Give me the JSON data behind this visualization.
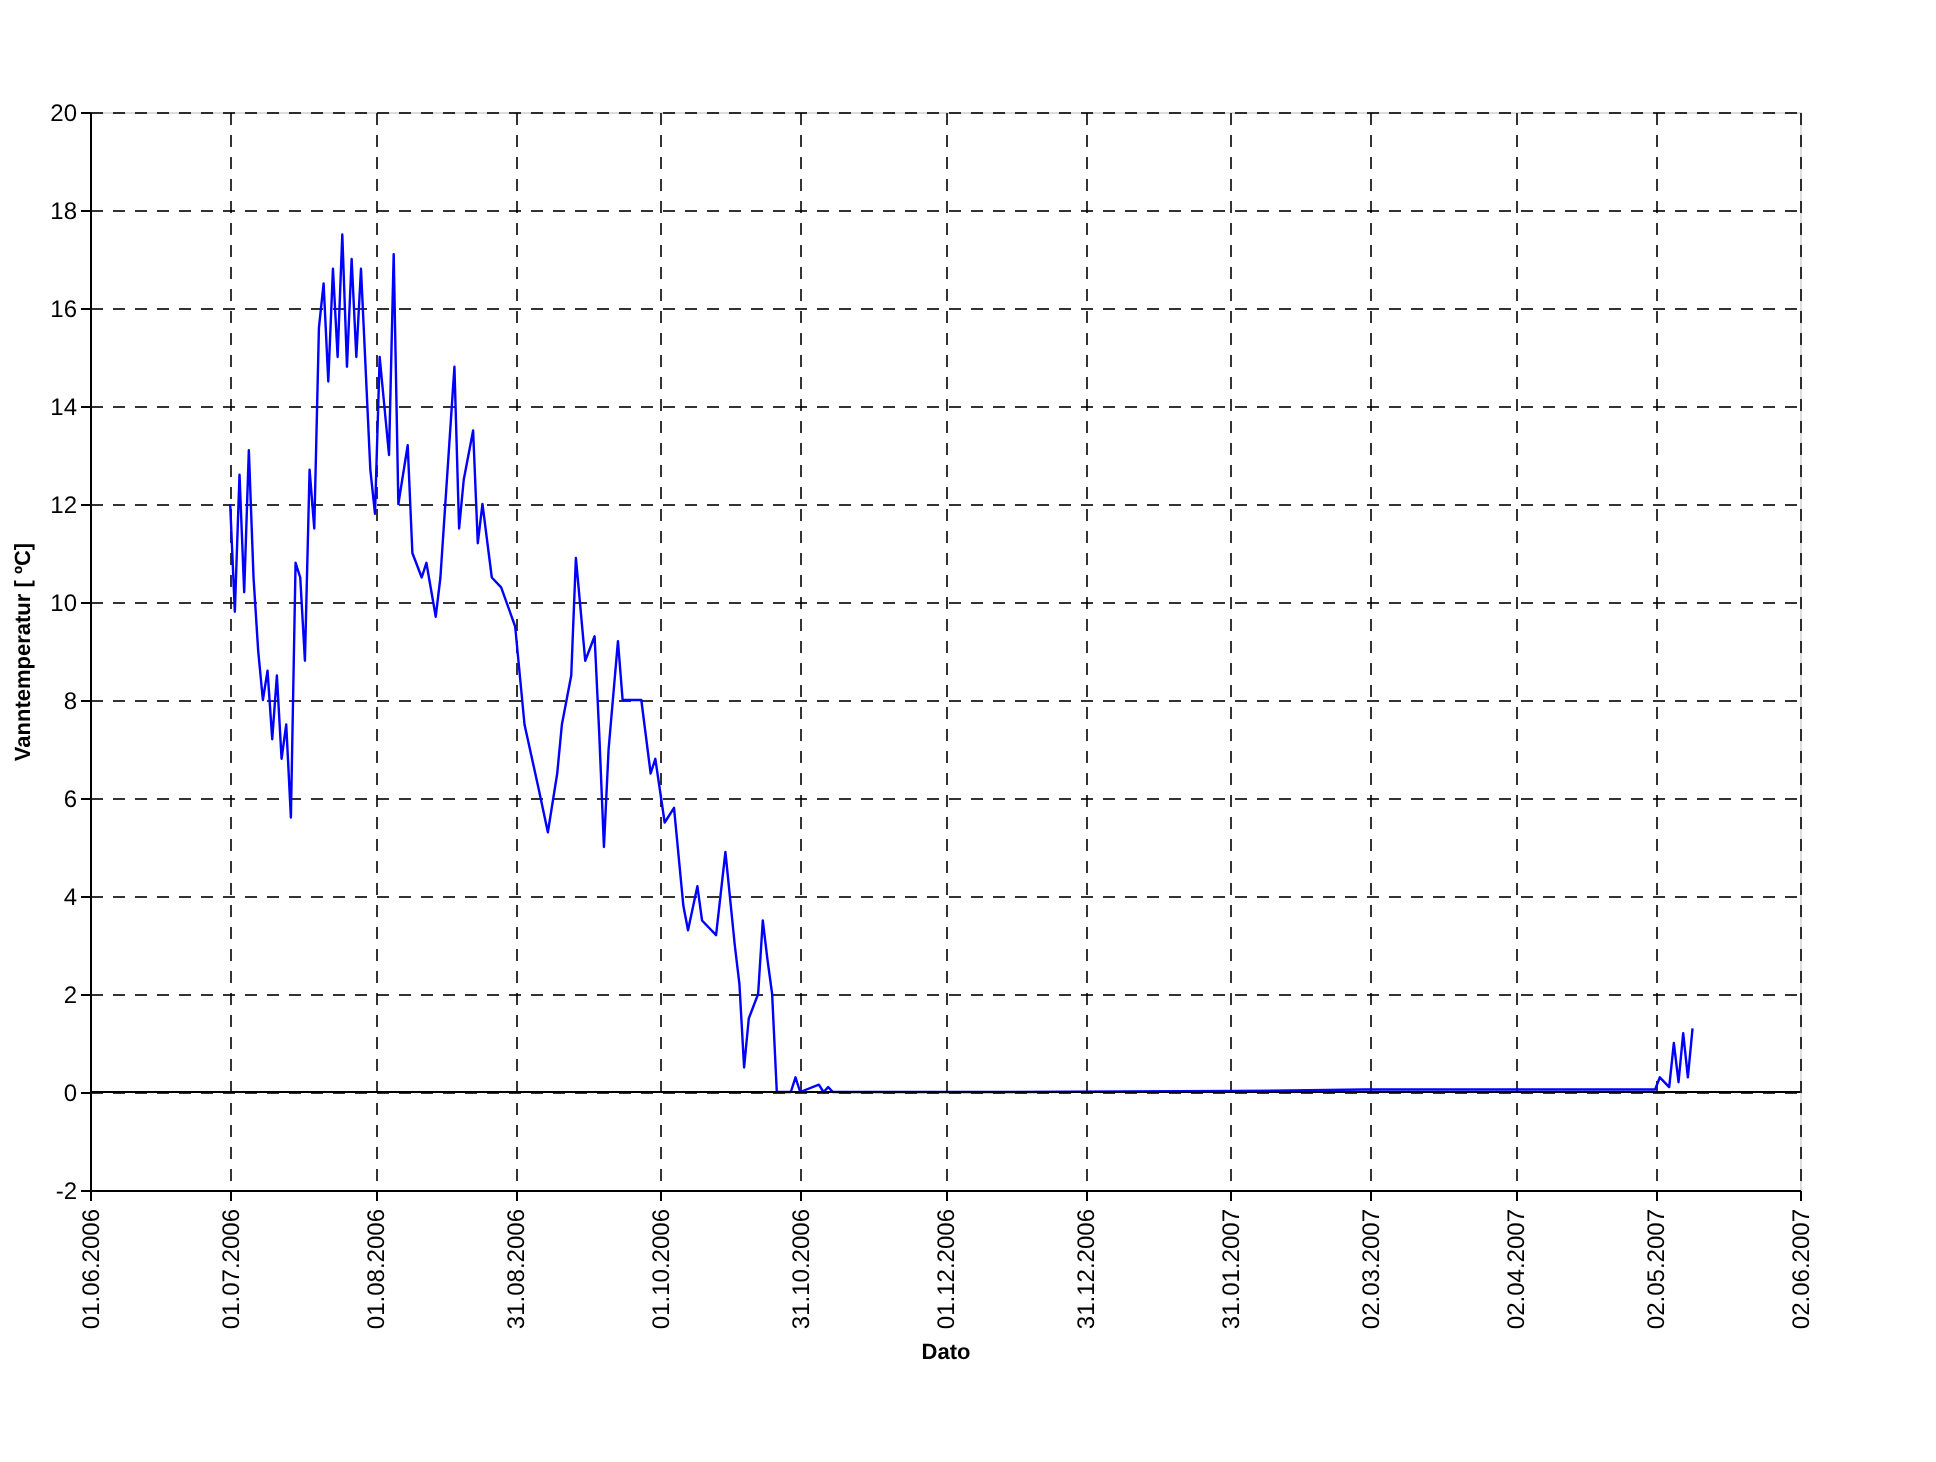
{
  "chart_data": {
    "type": "line",
    "xlabel": "Dato",
    "ylabel": "Vanntemperatur [ ºC]",
    "x": [
      "2006-07-01",
      "2006-07-02",
      "2006-07-03",
      "2006-07-04",
      "2006-07-05",
      "2006-07-06",
      "2006-07-07",
      "2006-07-08",
      "2006-07-09",
      "2006-07-10",
      "2006-07-11",
      "2006-07-12",
      "2006-07-13",
      "2006-07-14",
      "2006-07-15",
      "2006-07-16",
      "2006-07-17",
      "2006-07-18",
      "2006-07-19",
      "2006-07-20",
      "2006-07-21",
      "2006-07-22",
      "2006-07-23",
      "2006-07-24",
      "2006-07-25",
      "2006-07-26",
      "2006-07-27",
      "2006-07-28",
      "2006-07-29",
      "2006-07-31",
      "2006-08-01",
      "2006-08-02",
      "2006-08-04",
      "2006-08-05",
      "2006-08-06",
      "2006-08-08",
      "2006-08-09",
      "2006-08-11",
      "2006-08-12",
      "2006-08-14",
      "2006-08-15",
      "2006-08-18",
      "2006-08-19",
      "2006-08-20",
      "2006-08-22",
      "2006-08-23",
      "2006-08-24",
      "2006-08-26",
      "2006-08-28",
      "2006-08-31",
      "2006-09-02",
      "2006-09-05",
      "2006-09-07",
      "2006-09-09",
      "2006-09-10",
      "2006-09-12",
      "2006-09-13",
      "2006-09-15",
      "2006-09-17",
      "2006-09-18",
      "2006-09-19",
      "2006-09-20",
      "2006-09-22",
      "2006-09-23",
      "2006-09-27",
      "2006-09-29",
      "2006-09-30",
      "2006-10-02",
      "2006-10-04",
      "2006-10-06",
      "2006-10-07",
      "2006-10-09",
      "2006-10-10",
      "2006-10-13",
      "2006-10-15",
      "2006-10-17",
      "2006-10-18",
      "2006-10-19",
      "2006-10-20",
      "2006-10-22",
      "2006-10-23",
      "2006-10-24",
      "2006-10-25",
      "2006-10-26",
      "2006-10-29",
      "2006-10-30",
      "2006-10-31",
      "2006-11-04",
      "2006-11-05",
      "2006-11-06",
      "2006-11-07",
      "2006-12-15",
      "2007-02-01",
      "2007-03-01",
      "2007-04-15",
      "2007-05-02",
      "2007-05-03",
      "2007-05-05",
      "2007-05-06",
      "2007-05-07",
      "2007-05-08",
      "2007-05-09",
      "2007-05-10"
    ],
    "series": [
      {
        "color": "#0000ff",
        "values": [
          12.0,
          9.8,
          12.6,
          10.2,
          13.1,
          10.5,
          9.0,
          8.0,
          8.6,
          7.2,
          8.5,
          6.8,
          7.5,
          5.6,
          10.8,
          10.5,
          8.8,
          12.7,
          11.5,
          15.6,
          16.5,
          14.5,
          16.8,
          15.0,
          17.5,
          14.8,
          17.0,
          15.0,
          16.8,
          12.7,
          11.8,
          15.0,
          13.0,
          17.1,
          12.0,
          13.2,
          11.0,
          10.5,
          10.8,
          9.7,
          10.5,
          14.8,
          11.5,
          12.5,
          13.5,
          11.2,
          12.0,
          10.5,
          10.3,
          9.5,
          7.5,
          6.2,
          5.3,
          6.5,
          7.5,
          8.5,
          10.9,
          8.8,
          9.3,
          7.3,
          5.0,
          7.0,
          9.2,
          8.0,
          8.0,
          6.5,
          6.8,
          5.5,
          5.8,
          3.8,
          3.3,
          4.2,
          3.5,
          3.2,
          4.9,
          3.0,
          2.2,
          0.5,
          1.5,
          2.0,
          3.5,
          2.7,
          2.0,
          0.0,
          0.0,
          0.3,
          0.0,
          0.15,
          0.0,
          0.1,
          0.0,
          0.0,
          0.02,
          0.05,
          0.05,
          0.05,
          0.3,
          0.1,
          1.0,
          0.2,
          1.2,
          0.3,
          1.3
        ]
      }
    ],
    "xlim": [
      "2006-06-01",
      "2007-06-02"
    ],
    "xticks": [
      {
        "value": "2006-06-01",
        "label": "01.06.2006"
      },
      {
        "value": "2006-07-01",
        "label": "01.07.2006"
      },
      {
        "value": "2006-08-01",
        "label": "01.08.2006"
      },
      {
        "value": "2006-08-31",
        "label": "31.08.2006"
      },
      {
        "value": "2006-10-01",
        "label": "01.10.2006"
      },
      {
        "value": "2006-10-31",
        "label": "31.10.2006"
      },
      {
        "value": "2006-12-01",
        "label": "01.12.2006"
      },
      {
        "value": "2006-12-31",
        "label": "31.12.2006"
      },
      {
        "value": "2007-01-31",
        "label": "31.01.2007"
      },
      {
        "value": "2007-03-02",
        "label": "02.03.2007"
      },
      {
        "value": "2007-04-02",
        "label": "02.04.2007"
      },
      {
        "value": "2007-05-02",
        "label": "02.05.2007"
      },
      {
        "value": "2007-06-02",
        "label": "02.06.2007"
      }
    ],
    "ylim": [
      -2,
      20
    ],
    "yticks": [
      -2,
      0,
      2,
      4,
      6,
      8,
      10,
      12,
      14,
      16,
      18,
      20
    ],
    "grid": true,
    "line_style": "solid",
    "ref_lines": [
      {
        "axis": "y",
        "value": 0,
        "color": "#000000"
      }
    ]
  }
}
